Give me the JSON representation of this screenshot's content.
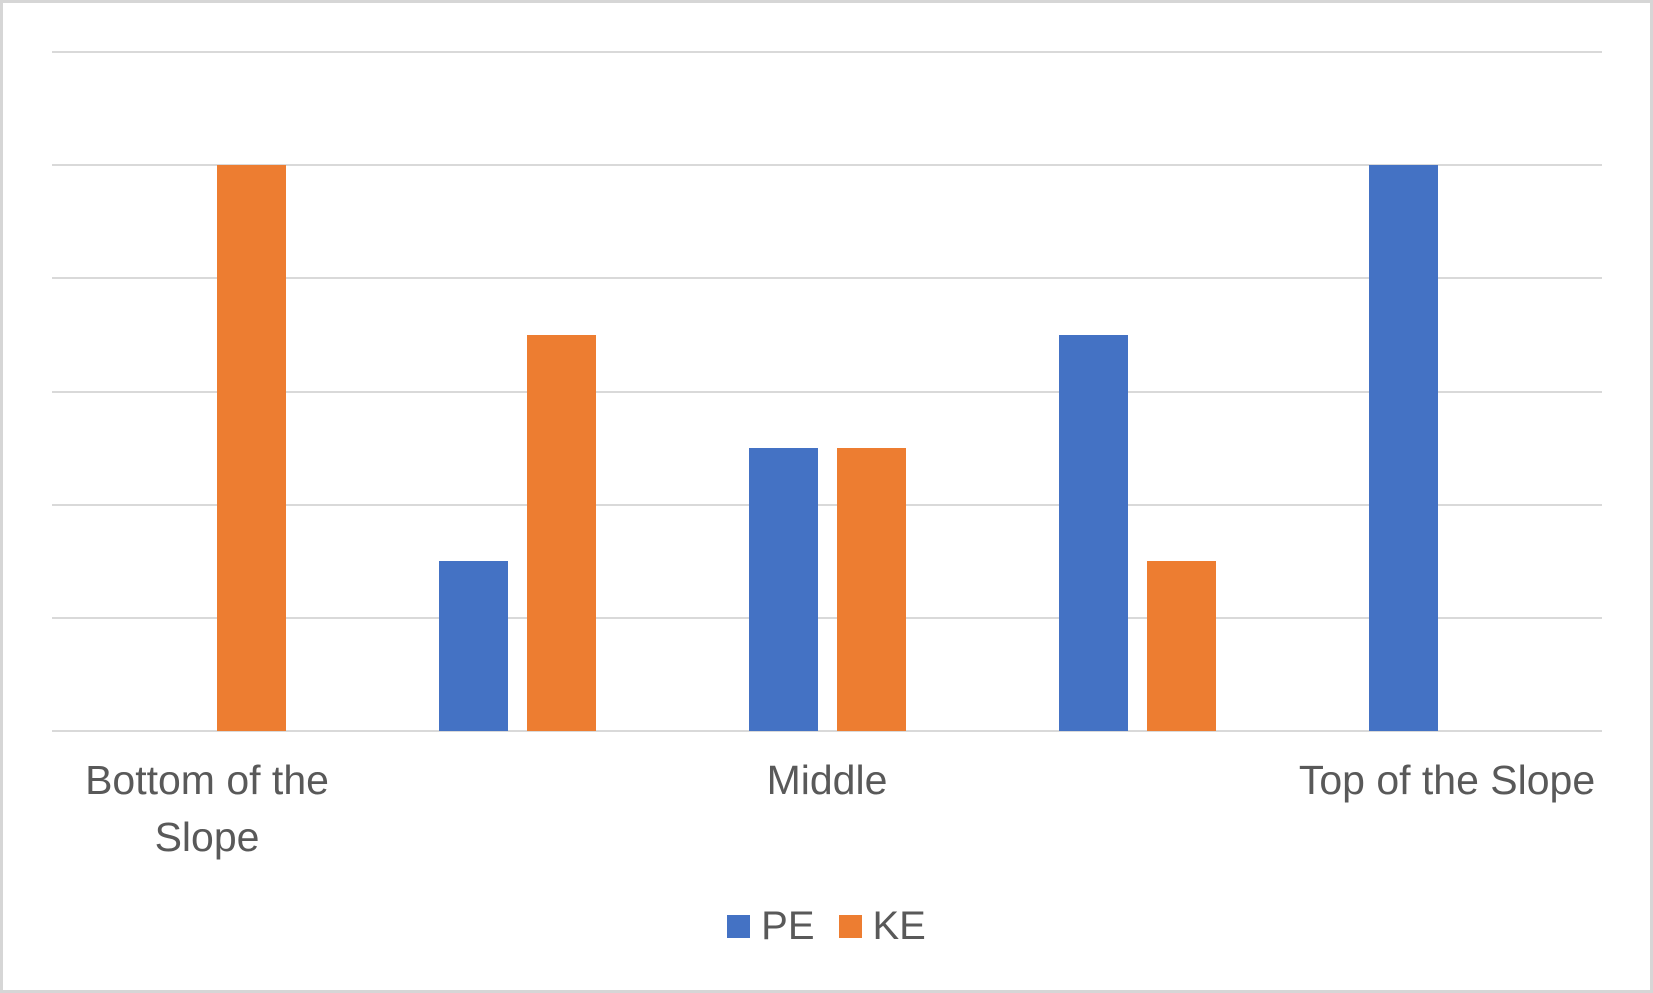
{
  "chart_data": {
    "type": "bar",
    "categories": [
      "Bottom of the Slope",
      "",
      "Middle",
      "",
      "Top of the Slope"
    ],
    "series": [
      {
        "name": "PE",
        "color": "#4472C4",
        "values": [
          0,
          1.5,
          2.5,
          3.5,
          5
        ]
      },
      {
        "name": "KE",
        "color": "#ED7D31",
        "values": [
          5,
          3.5,
          2.5,
          1.5,
          0
        ]
      }
    ],
    "title": "",
    "xlabel": "",
    "ylabel": "",
    "ylim": [
      0,
      6
    ],
    "gridline_step": 1,
    "grid": true,
    "y_tick_labels_visible": false,
    "legend_position": "bottom",
    "colors": {
      "gridline": "#D9D9D9",
      "axis_line": "#D9D9D9",
      "text": "#595959",
      "background": "#FFFFFF",
      "figure_border": "#D6D6D6"
    }
  }
}
